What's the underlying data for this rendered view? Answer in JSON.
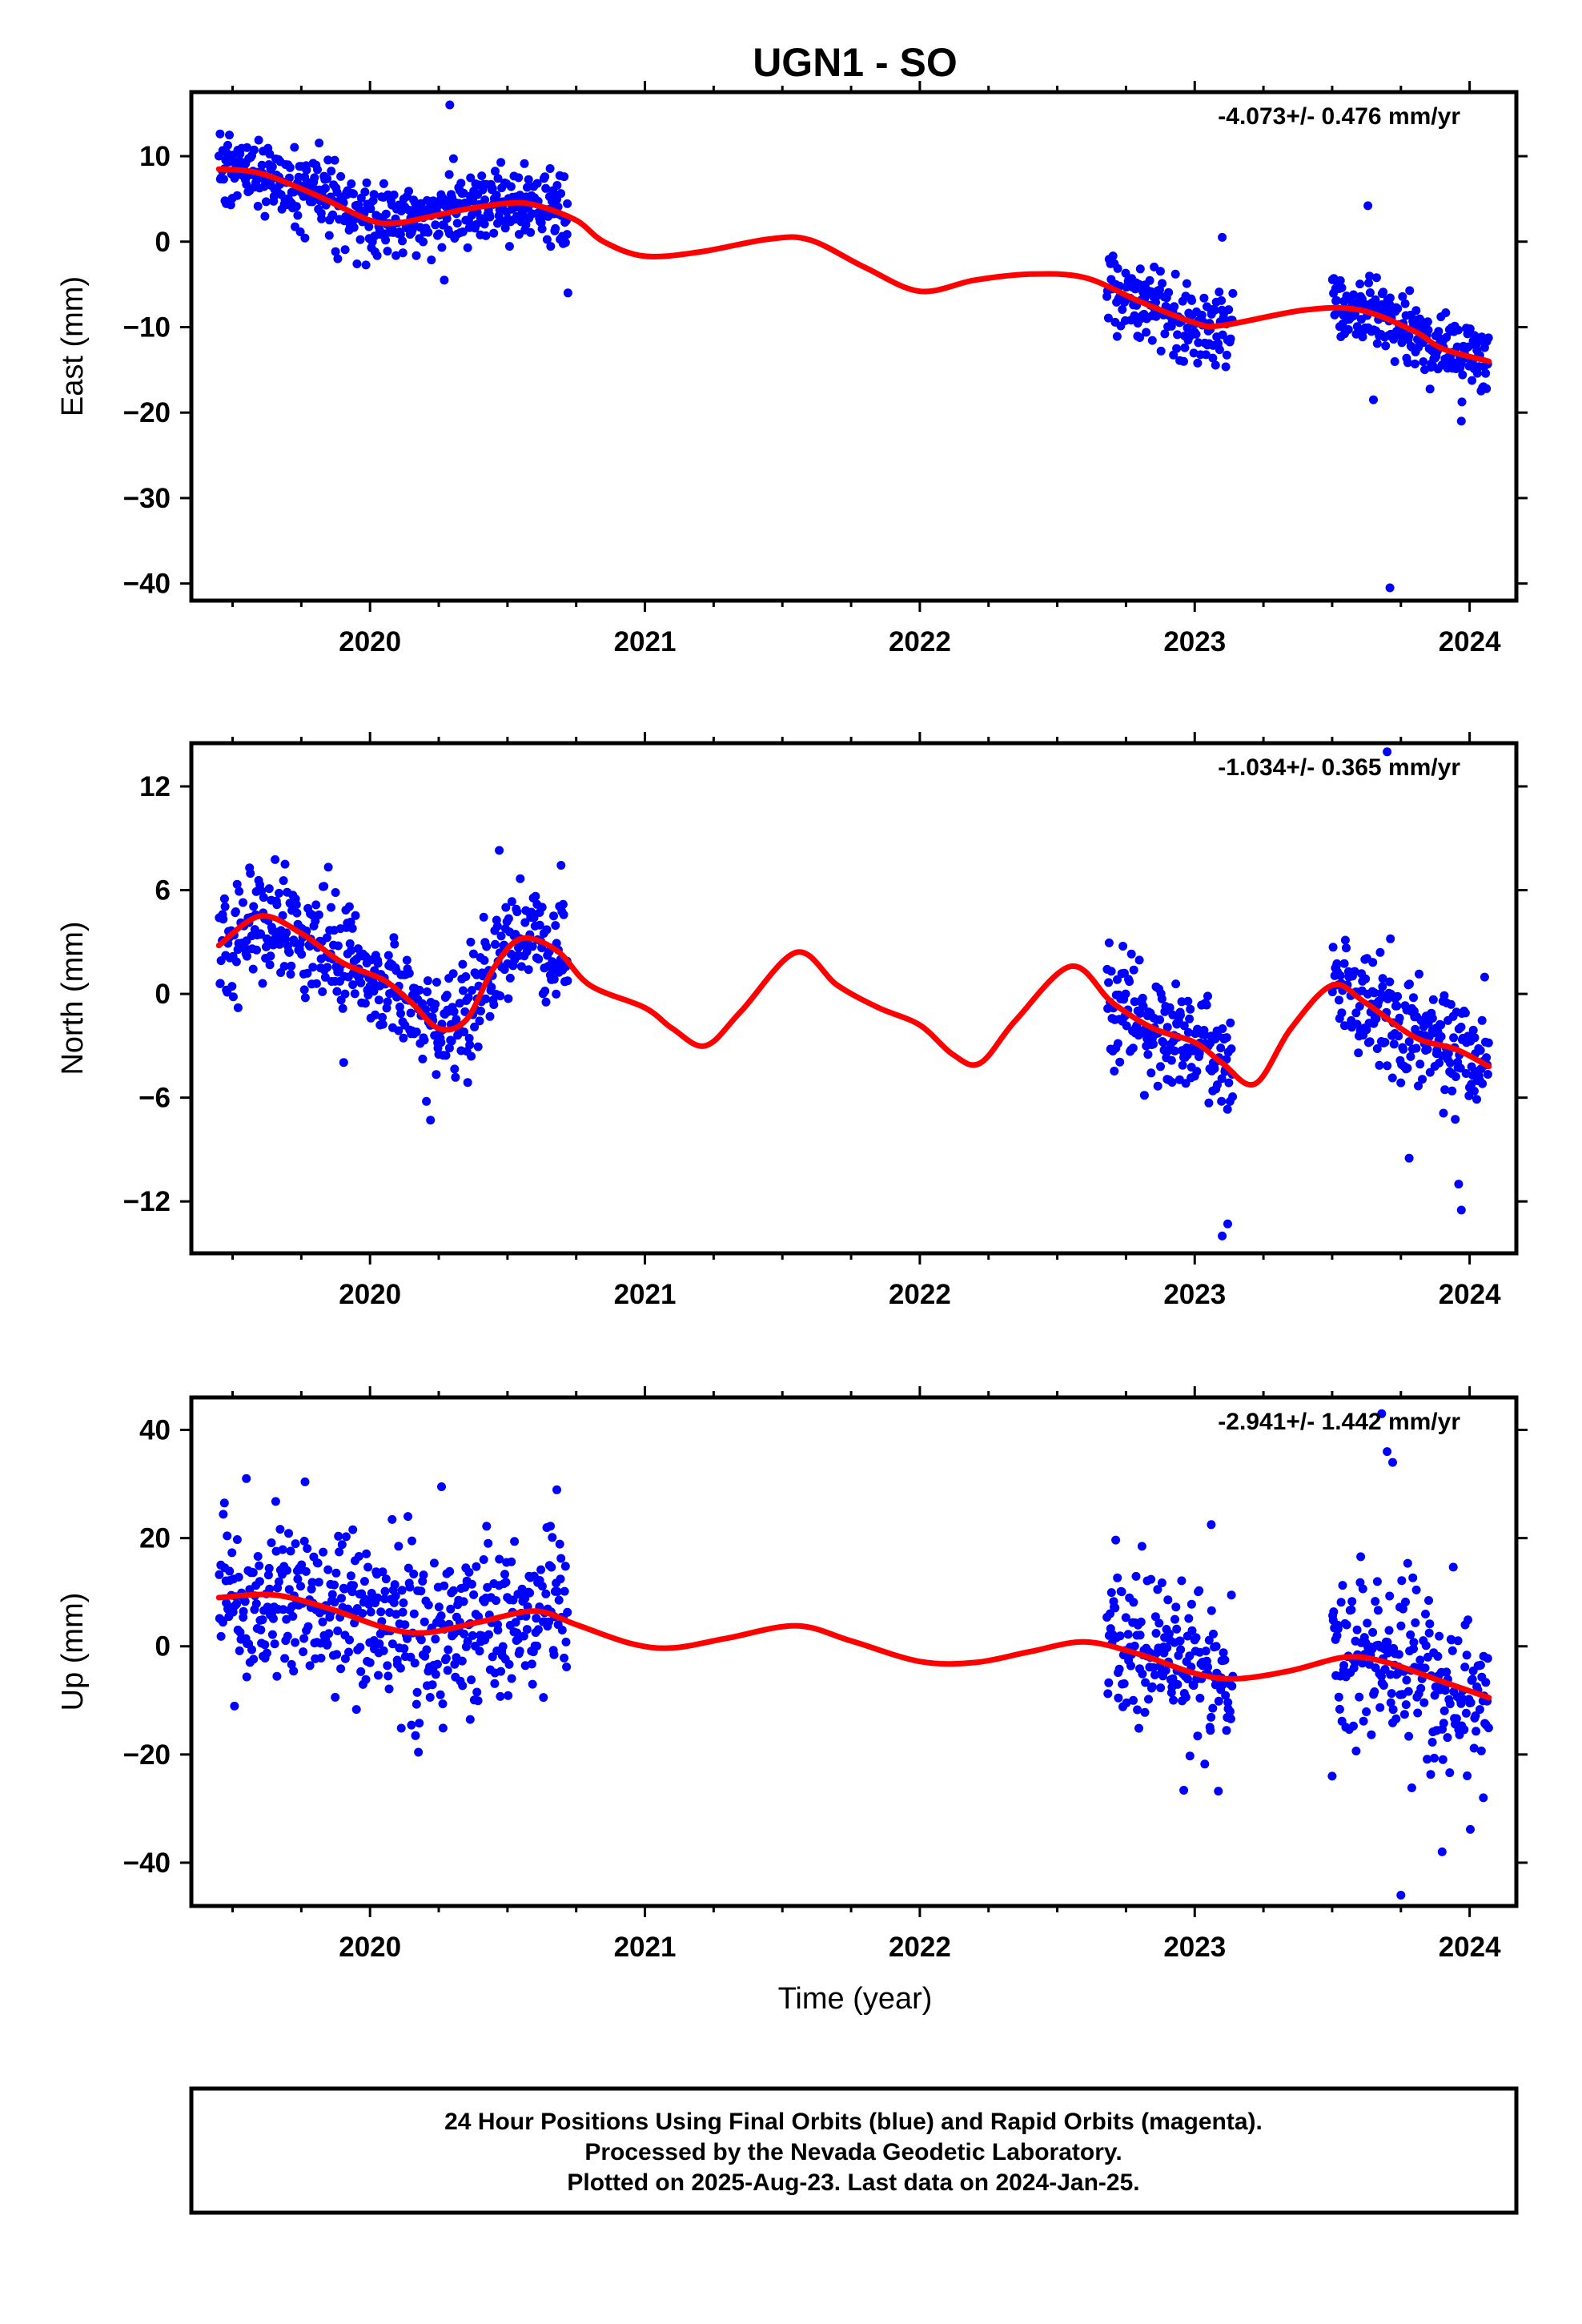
{
  "title": "UGN1 - SO",
  "xlabel": "Time (year)",
  "caption": [
    "24 Hour Positions Using Final Orbits (blue) and Rapid Orbits (magenta).",
    "Processed by the Nevada Geodetic Laboratory.",
    "Plotted on 2025-Aug-23. Last data on 2024-Jan-25."
  ],
  "colors": {
    "final_orbits": "#0000ff",
    "rapid_orbits": "#ff00ff",
    "model": "#ff0000"
  },
  "chart_data": [
    {
      "type": "scatter",
      "ylabel": "East (mm)",
      "rate": "-4.073+/- 0.476 mm/yr",
      "xlim": [
        2019.35,
        2024.17
      ],
      "ylim": [
        -42,
        17.5
      ],
      "yticks": [
        10,
        0,
        -10,
        -20,
        -30,
        -40
      ],
      "ytick_labels": [
        "10",
        "0",
        "−10",
        "−20",
        "−30",
        "−40"
      ],
      "xticks": [
        2020,
        2021,
        2022,
        2023,
        2024
      ],
      "data_spans": [
        [
          2019.45,
          2020.72
        ],
        [
          2022.68,
          2023.14
        ],
        [
          2023.5,
          2024.07
        ]
      ],
      "model_knots": [
        [
          2019.45,
          8.5
        ],
        [
          2019.6,
          8.0
        ],
        [
          2019.8,
          5.5
        ],
        [
          2020.0,
          2.5
        ],
        [
          2020.1,
          2.2
        ],
        [
          2020.2,
          2.8
        ],
        [
          2020.35,
          3.8
        ],
        [
          2020.5,
          4.5
        ],
        [
          2020.6,
          4.3
        ],
        [
          2020.75,
          2.5
        ],
        [
          2020.85,
          0.0
        ],
        [
          2021.0,
          -1.7
        ],
        [
          2021.2,
          -1.2
        ],
        [
          2021.45,
          0.3
        ],
        [
          2021.6,
          0.2
        ],
        [
          2021.8,
          -3.0
        ],
        [
          2022.0,
          -5.8
        ],
        [
          2022.2,
          -4.5
        ],
        [
          2022.4,
          -3.8
        ],
        [
          2022.6,
          -4.2
        ],
        [
          2022.8,
          -7.0
        ],
        [
          2023.0,
          -9.5
        ],
        [
          2023.1,
          -9.8
        ],
        [
          2023.4,
          -8.0
        ],
        [
          2023.6,
          -8.0
        ],
        [
          2023.8,
          -10.5
        ],
        [
          2023.9,
          -12.5
        ],
        [
          2024.07,
          -14.0
        ]
      ],
      "outliers": [
        [
          2020.29,
          16.0
        ],
        [
          2020.27,
          -4.5
        ],
        [
          2020.72,
          -6.0
        ],
        [
          2023.71,
          -40.5
        ],
        [
          2023.63,
          4.2
        ],
        [
          2023.65,
          -18.5
        ],
        [
          2023.97,
          -21.0
        ],
        [
          2023.1,
          0.5
        ]
      ],
      "noise_sd": 2.2
    },
    {
      "type": "scatter",
      "ylabel": "North (mm)",
      "rate": "-1.034+/- 0.365 mm/yr",
      "xlim": [
        2019.35,
        2024.17
      ],
      "ylim": [
        -15,
        14.5
      ],
      "yticks": [
        12,
        6,
        0,
        -6,
        -12
      ],
      "ytick_labels": [
        "12",
        "6",
        "0",
        "−6",
        "−12"
      ],
      "xticks": [
        2020,
        2021,
        2022,
        2023,
        2024
      ],
      "data_spans": [
        [
          2019.45,
          2020.72
        ],
        [
          2022.68,
          2023.14
        ],
        [
          2023.5,
          2024.07
        ]
      ],
      "model_knots": [
        [
          2019.45,
          2.8
        ],
        [
          2019.6,
          4.5
        ],
        [
          2019.75,
          3.5
        ],
        [
          2019.9,
          1.8
        ],
        [
          2020.05,
          0.8
        ],
        [
          2020.15,
          -0.5
        ],
        [
          2020.25,
          -2.0
        ],
        [
          2020.35,
          -1.5
        ],
        [
          2020.45,
          1.5
        ],
        [
          2020.55,
          3.2
        ],
        [
          2020.68,
          2.5
        ],
        [
          2020.8,
          0.5
        ],
        [
          2021.0,
          -0.8
        ],
        [
          2021.1,
          -2.0
        ],
        [
          2021.22,
          -3.0
        ],
        [
          2021.35,
          -1.0
        ],
        [
          2021.55,
          2.4
        ],
        [
          2021.7,
          0.5
        ],
        [
          2021.85,
          -0.8
        ],
        [
          2022.0,
          -1.8
        ],
        [
          2022.12,
          -3.5
        ],
        [
          2022.22,
          -4.0
        ],
        [
          2022.35,
          -1.5
        ],
        [
          2022.55,
          1.6
        ],
        [
          2022.7,
          -0.5
        ],
        [
          2022.85,
          -2.0
        ],
        [
          2023.0,
          -2.8
        ],
        [
          2023.1,
          -4.0
        ],
        [
          2023.22,
          -5.2
        ],
        [
          2023.35,
          -2.0
        ],
        [
          2023.5,
          0.5
        ],
        [
          2023.62,
          -0.5
        ],
        [
          2023.8,
          -2.5
        ],
        [
          2023.95,
          -3.2
        ],
        [
          2024.07,
          -4.2
        ]
      ],
      "outliers": [
        [
          2023.7,
          14.0
        ],
        [
          2023.1,
          -14.0
        ],
        [
          2023.12,
          -13.3
        ],
        [
          2023.78,
          -9.5
        ],
        [
          2023.97,
          -12.5
        ],
        [
          2023.96,
          -11.0
        ],
        [
          2020.22,
          -7.3
        ],
        [
          2019.52,
          -0.8
        ],
        [
          2020.47,
          8.3
        ]
      ],
      "noise_sd": 1.6
    },
    {
      "type": "scatter",
      "ylabel": "Up (mm)",
      "rate": "-2.941+/- 1.442 mm/yr",
      "xlim": [
        2019.35,
        2024.17
      ],
      "ylim": [
        -48,
        46
      ],
      "yticks": [
        40,
        20,
        0,
        -20,
        -40
      ],
      "ytick_labels": [
        "40",
        "20",
        "0",
        "−20",
        "−40"
      ],
      "xticks": [
        2020,
        2021,
        2022,
        2023,
        2024
      ],
      "data_spans": [
        [
          2019.45,
          2020.72
        ],
        [
          2022.68,
          2023.14
        ],
        [
          2023.5,
          2024.07
        ]
      ],
      "model_knots": [
        [
          2019.45,
          9.0
        ],
        [
          2019.65,
          9.5
        ],
        [
          2019.85,
          7.0
        ],
        [
          2020.05,
          3.5
        ],
        [
          2020.2,
          2.5
        ],
        [
          2020.4,
          4.5
        ],
        [
          2020.6,
          6.5
        ],
        [
          2020.75,
          4.0
        ],
        [
          2020.95,
          0.5
        ],
        [
          2021.1,
          -0.3
        ],
        [
          2021.3,
          1.5
        ],
        [
          2021.55,
          3.8
        ],
        [
          2021.75,
          1.0
        ],
        [
          2022.0,
          -2.8
        ],
        [
          2022.2,
          -3.0
        ],
        [
          2022.4,
          -1.0
        ],
        [
          2022.6,
          0.8
        ],
        [
          2022.8,
          -1.5
        ],
        [
          2023.0,
          -5.0
        ],
        [
          2023.15,
          -6.0
        ],
        [
          2023.35,
          -4.5
        ],
        [
          2023.55,
          -2.0
        ],
        [
          2023.7,
          -3.0
        ],
        [
          2023.9,
          -6.5
        ],
        [
          2024.07,
          -9.5
        ]
      ],
      "outliers": [
        [
          2023.68,
          43.0
        ],
        [
          2023.72,
          34.0
        ],
        [
          2023.7,
          36.0
        ],
        [
          2023.75,
          -46.0
        ],
        [
          2023.9,
          -38.0
        ],
        [
          2020.26,
          29.5
        ],
        [
          2023.06,
          22.5
        ],
        [
          2019.55,
          31.0
        ],
        [
          2023.5,
          -24.0
        ],
        [
          2024.05,
          -28.0
        ]
      ],
      "noise_sd": 7.5
    }
  ]
}
